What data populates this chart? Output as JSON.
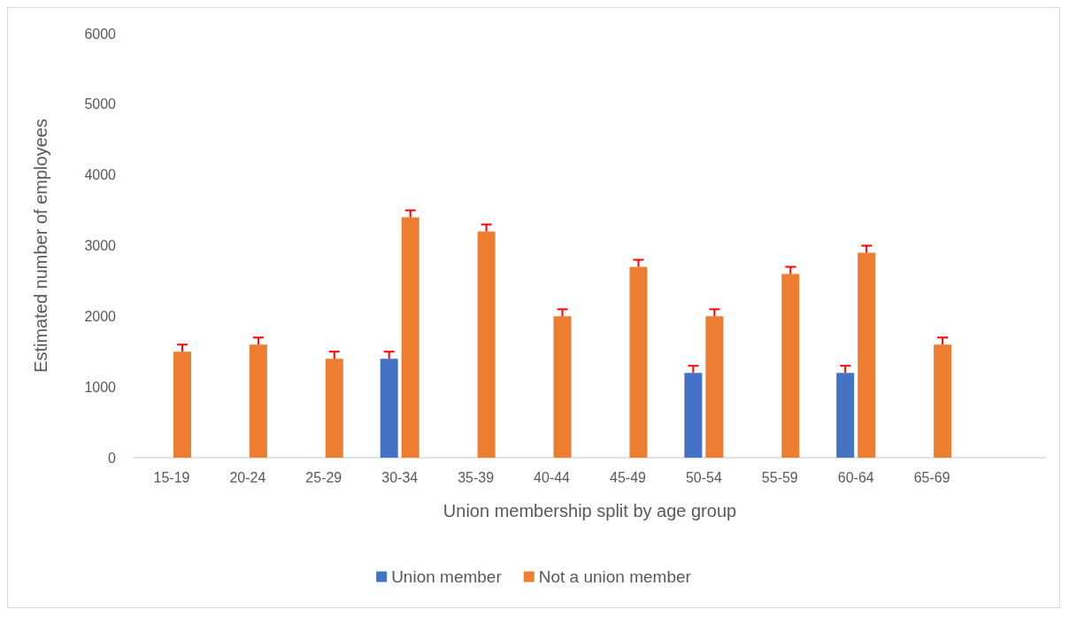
{
  "chart_data": {
    "type": "bar",
    "xlabel": "Union membership split by age group",
    "ylabel": "Estimated number of employees",
    "categories": [
      "15-19",
      "20-24",
      "25-29",
      "30-34",
      "35-39",
      "40-44",
      "45-49",
      "50-54",
      "55-59",
      "60-64",
      "65-69",
      null
    ],
    "series": [
      {
        "name": "Union member",
        "color": "#4472c4",
        "values": [
          null,
          null,
          null,
          1400,
          null,
          null,
          null,
          1200,
          null,
          1200,
          null,
          null
        ],
        "errors": [
          null,
          null,
          null,
          [
            1400,
            1500
          ],
          null,
          null,
          null,
          [
            1200,
            1300
          ],
          null,
          [
            1200,
            1300
          ],
          null,
          null
        ]
      },
      {
        "name": "Not a union member",
        "color": "#ed7d31",
        "values": [
          1500,
          1600,
          1400,
          3400,
          3200,
          2000,
          2700,
          2000,
          2600,
          2900,
          1600,
          null
        ],
        "errors": [
          [
            1500,
            1600
          ],
          [
            1600,
            1700
          ],
          [
            1400,
            1500
          ],
          [
            3400,
            3500
          ],
          [
            3200,
            3300
          ],
          [
            2000,
            2100
          ],
          [
            2700,
            2800
          ],
          [
            2000,
            2100
          ],
          [
            2600,
            2700
          ],
          [
            2900,
            3000
          ],
          [
            1600,
            1700
          ],
          null
        ]
      }
    ],
    "ylim": [
      0,
      6000
    ],
    "yticks": [
      0,
      1000,
      2000,
      3000,
      4000,
      5000,
      6000
    ],
    "grid": false,
    "legend": "bottom"
  }
}
